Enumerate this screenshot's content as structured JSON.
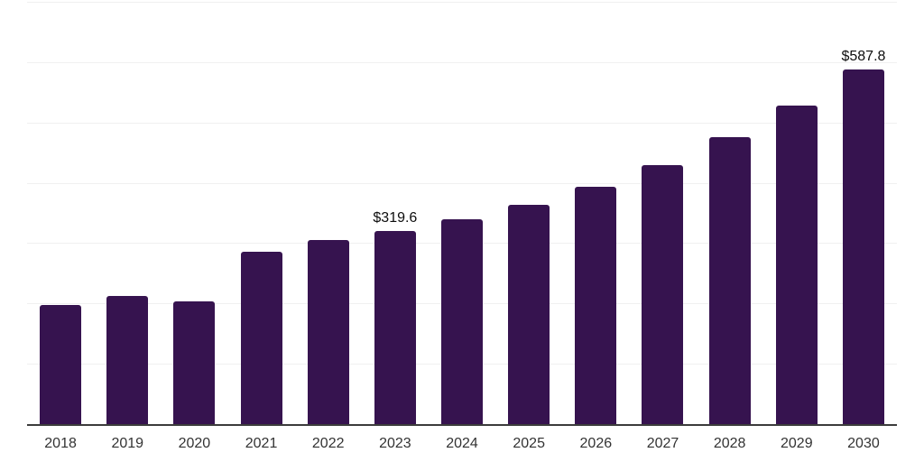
{
  "chart": {
    "background_color": "#ffffff",
    "bar_color": "#36134F",
    "axis_line_color": "#3c3c3c",
    "gridline_color": "#f0f0f0",
    "value_label_color": "#0d0d0d",
    "tick_label_color": "#333333"
  },
  "chart_data": {
    "type": "bar",
    "title": "",
    "xlabel": "",
    "ylabel": "",
    "categories": [
      "2018",
      "2019",
      "2020",
      "2021",
      "2022",
      "2023",
      "2024",
      "2025",
      "2026",
      "2027",
      "2028",
      "2029",
      "2030"
    ],
    "values": [
      197,
      212,
      204,
      286,
      305,
      319.6,
      340,
      364,
      393,
      430,
      475,
      528,
      587.8
    ],
    "data_labels": [
      null,
      null,
      null,
      null,
      null,
      "$319.6",
      null,
      null,
      null,
      null,
      null,
      null,
      "$587.8"
    ],
    "ylim": [
      0,
      700
    ],
    "gridline_interval": 100,
    "grid": "horizontal",
    "y_tick_labels_visible": false,
    "legend": "none"
  }
}
